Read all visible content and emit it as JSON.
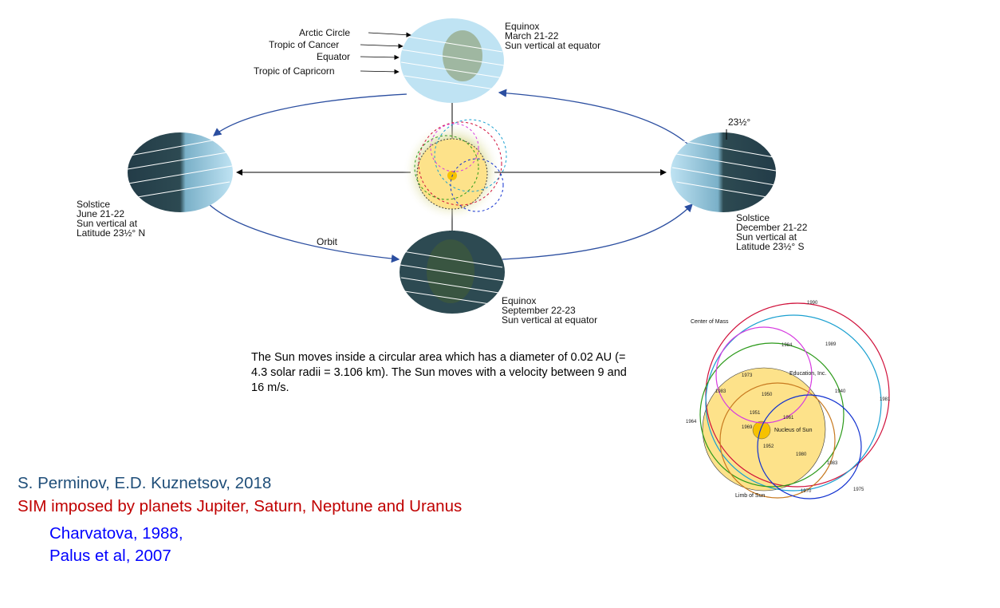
{
  "diagram": {
    "labels": {
      "arctic_circle": "Arctic Circle",
      "tropic_cancer": "Tropic of Cancer",
      "equator": "Equator",
      "tropic_capricorn": "Tropic of Capricorn",
      "equinox_march": [
        "Equinox",
        "March 21-22",
        "Sun vertical at equator"
      ],
      "solstice_june": [
        "Solstice",
        "June 21-22",
        "Sun vertical at",
        "Latitude 23½° N"
      ],
      "solstice_december": [
        "Solstice",
        "December 21-22",
        "Sun vertical at",
        "Latitude 23½° S"
      ],
      "equinox_september": [
        "Equinox",
        "September 22-23",
        "Sun vertical at equator"
      ],
      "orbit": "Orbit",
      "tilt": "23½°"
    },
    "sim_plot": {
      "center_of_mass": "Center of Mass",
      "nucleus_of_sun": "Nucleus of Sun",
      "limb_of_sun": "Limb of Sun",
      "credit": "Education, Inc.",
      "years": [
        "1990",
        "1989",
        "1984",
        "1973",
        "1983",
        "1950",
        "1951",
        "1961",
        "1969",
        "1952",
        "1980",
        "1964",
        "1981",
        "1983",
        "1970",
        "1975",
        "1940"
      ]
    },
    "colors": {
      "orbit": "#2b4ea0",
      "sun": "#fde28a",
      "nucleus": "#f6c200"
    }
  },
  "description_text": "The Sun moves inside a circular area which has a diameter of 0.02 AU (= 4.3 solar radii = 3.106 km). The Sun moves with a velocity between 9 and 16 m/s.",
  "citations": {
    "authors": "S. Perminov, E.D. Kuznetsov, 2018",
    "subtitle": "SIM imposed by planets Jupiter, Saturn, Neptune and Uranus",
    "ref1": "Charvatova, 1988,",
    "ref2": "Palus et al, 2007"
  }
}
